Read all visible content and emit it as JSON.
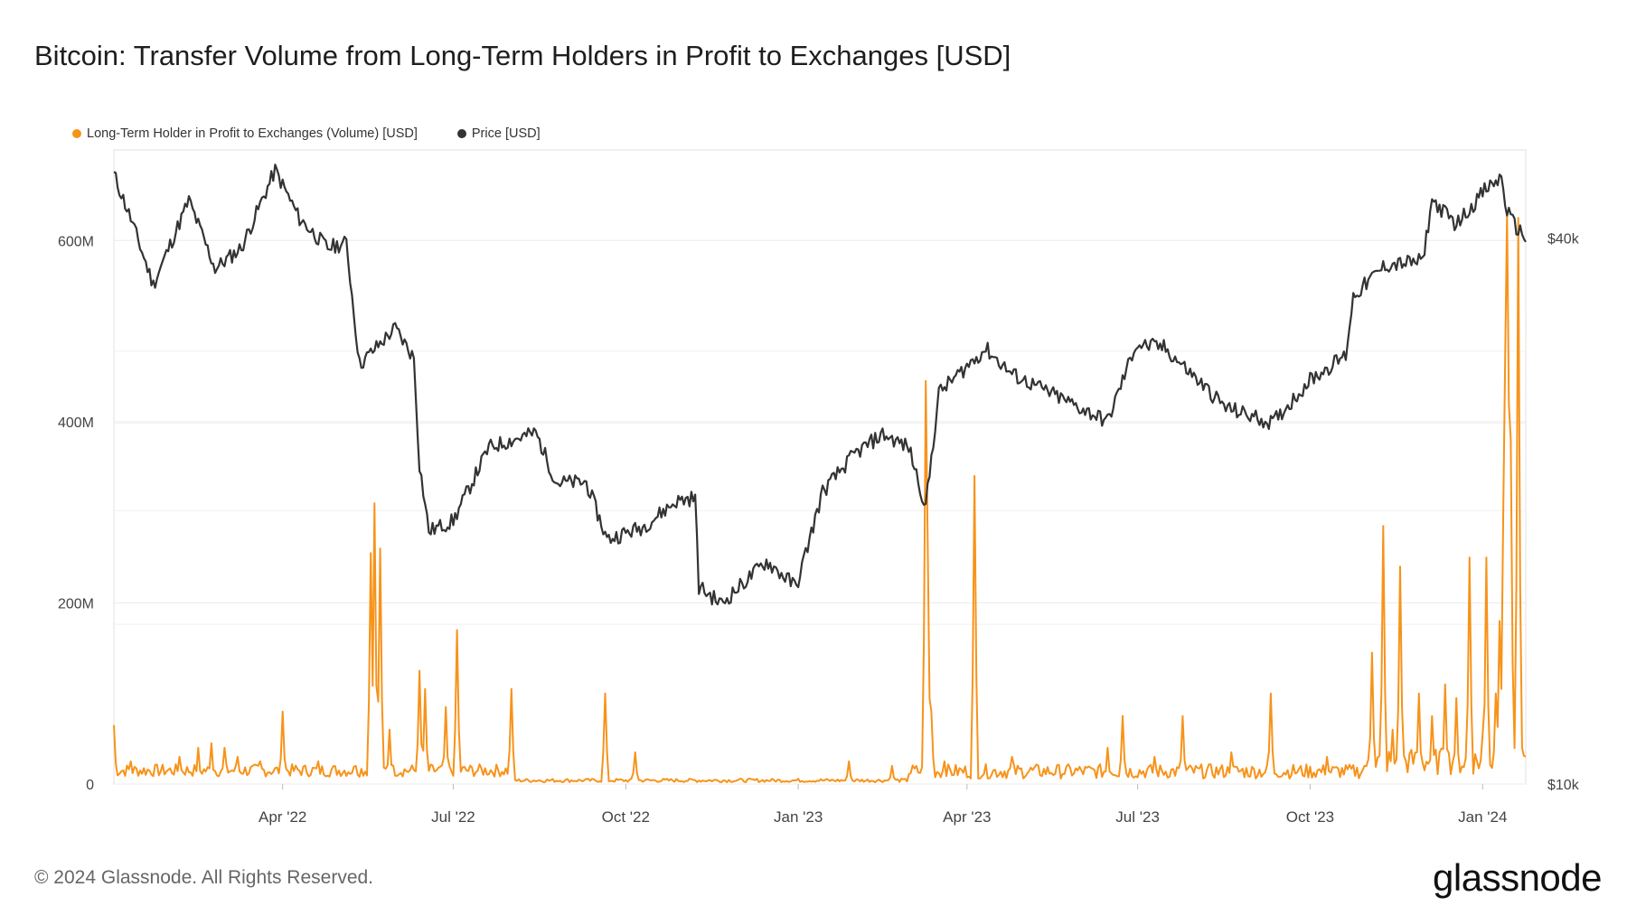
{
  "title": "Bitcoin: Transfer Volume from Long-Term Holders in Profit to Exchanges [USD]",
  "footer": "© 2024 Glassnode. All Rights Reserved.",
  "brand": "glassnode",
  "colors": {
    "volume": "#f7931a",
    "price": "#333333",
    "grid": "#ececec",
    "axis_text": "#444444"
  },
  "chart_data": {
    "type": "line",
    "legend_position": "top-left",
    "grid": true,
    "x_ticks": [
      "Apr '22",
      "Jul '22",
      "Oct '22",
      "Jan '23",
      "Apr '23",
      "Jul '23",
      "Oct '23",
      "Jan '24"
    ],
    "x_range": [
      "2022-01-01",
      "2024-01-24"
    ],
    "left_axis": {
      "ticks": [
        0,
        200,
        400,
        600
      ],
      "labels": [
        "0",
        "200M",
        "400M",
        "600M"
      ],
      "range": [
        0,
        700
      ]
    },
    "right_axis": {
      "ticks": [
        10000,
        40000
      ],
      "labels": [
        "$10k",
        "$40k"
      ],
      "scale": "log",
      "range": [
        10000,
        50000
      ]
    },
    "series": [
      {
        "name": "Long-Term Holder in Profit to Exchanges (Volume) [USD]",
        "axis": "left",
        "color": "#f7931a",
        "unit": "M USD",
        "baseline_spikes": [
          [
            "2022-01-01",
            65
          ],
          [
            "2022-01-10",
            25
          ],
          [
            "2022-02-05",
            30
          ],
          [
            "2022-02-15",
            40
          ],
          [
            "2022-02-22",
            45
          ],
          [
            "2022-03-01",
            40
          ],
          [
            "2022-03-08",
            30
          ],
          [
            "2022-03-20",
            25
          ],
          [
            "2022-04-01",
            80
          ],
          [
            "2022-04-20",
            25
          ],
          [
            "2022-05-10",
            20
          ],
          [
            "2022-05-18",
            255
          ],
          [
            "2022-05-20",
            310
          ],
          [
            "2022-05-23",
            260
          ],
          [
            "2022-05-28",
            60
          ],
          [
            "2022-06-13",
            125
          ],
          [
            "2022-06-16",
            105
          ],
          [
            "2022-06-27",
            85
          ],
          [
            "2022-07-03",
            170
          ],
          [
            "2022-08-01",
            105
          ],
          [
            "2022-09-20",
            100
          ],
          [
            "2022-10-06",
            35
          ],
          [
            "2023-01-28",
            25
          ],
          [
            "2023-02-20",
            20
          ],
          [
            "2023-03-05",
            20
          ],
          [
            "2023-03-10",
            445
          ],
          [
            "2023-03-11",
            270
          ],
          [
            "2023-03-13",
            80
          ],
          [
            "2023-03-20",
            25
          ],
          [
            "2023-04-05",
            340
          ],
          [
            "2023-04-25",
            30
          ],
          [
            "2023-06-15",
            40
          ],
          [
            "2023-06-23",
            75
          ],
          [
            "2023-07-10",
            30
          ],
          [
            "2023-07-25",
            75
          ],
          [
            "2023-08-20",
            35
          ],
          [
            "2023-09-10",
            100
          ],
          [
            "2023-10-10",
            30
          ],
          [
            "2023-10-30",
            20
          ],
          [
            "2023-11-03",
            145
          ],
          [
            "2023-11-09",
            285
          ],
          [
            "2023-11-14",
            60
          ],
          [
            "2023-11-18",
            240
          ],
          [
            "2023-11-28",
            100
          ],
          [
            "2023-12-05",
            75
          ],
          [
            "2023-12-12",
            110
          ],
          [
            "2023-12-18",
            95
          ],
          [
            "2023-12-25",
            250
          ],
          [
            "2024-01-01",
            55
          ],
          [
            "2024-01-03",
            250
          ],
          [
            "2024-01-08",
            100
          ],
          [
            "2024-01-10",
            180
          ],
          [
            "2024-01-12",
            300
          ],
          [
            "2024-01-13",
            470
          ],
          [
            "2024-01-14",
            630
          ],
          [
            "2024-01-15",
            420
          ],
          [
            "2024-01-16",
            380
          ],
          [
            "2024-01-18",
            10
          ],
          [
            "2024-01-20",
            625
          ],
          [
            "2024-01-22",
            40
          ]
        ]
      },
      {
        "name": "Price [USD]",
        "axis": "right",
        "color": "#333333",
        "unit": "USD",
        "points": [
          [
            "2022-01-01",
            47000
          ],
          [
            "2022-01-10",
            42000
          ],
          [
            "2022-01-22",
            35500
          ],
          [
            "2022-02-10",
            44000
          ],
          [
            "2022-02-24",
            37000
          ],
          [
            "2022-03-10",
            39000
          ],
          [
            "2022-03-28",
            47500
          ],
          [
            "2022-04-10",
            42000
          ],
          [
            "2022-04-25",
            39000
          ],
          [
            "2022-05-05",
            39500
          ],
          [
            "2022-05-12",
            29000
          ],
          [
            "2022-05-31",
            31800
          ],
          [
            "2022-06-10",
            29500
          ],
          [
            "2022-06-13",
            22500
          ],
          [
            "2022-06-18",
            19000
          ],
          [
            "2022-07-01",
            19500
          ],
          [
            "2022-07-20",
            23500
          ],
          [
            "2022-08-14",
            24400
          ],
          [
            "2022-08-25",
            21500
          ],
          [
            "2022-09-10",
            21500
          ],
          [
            "2022-09-21",
            18600
          ],
          [
            "2022-10-10",
            19200
          ],
          [
            "2022-10-28",
            20500
          ],
          [
            "2022-11-07",
            20700
          ],
          [
            "2022-11-09",
            16500
          ],
          [
            "2022-11-21",
            15800
          ],
          [
            "2022-12-15",
            17600
          ],
          [
            "2022-12-31",
            16500
          ],
          [
            "2023-01-14",
            21000
          ],
          [
            "2023-01-31",
            23100
          ],
          [
            "2023-02-15",
            24300
          ],
          [
            "2023-03-01",
            23500
          ],
          [
            "2023-03-10",
            20200
          ],
          [
            "2023-03-17",
            27000
          ],
          [
            "2023-04-11",
            30200
          ],
          [
            "2023-04-25",
            28300
          ],
          [
            "2023-05-15",
            27000
          ],
          [
            "2023-06-15",
            25100
          ],
          [
            "2023-06-30",
            30500
          ],
          [
            "2023-07-15",
            30300
          ],
          [
            "2023-08-17",
            26000
          ],
          [
            "2023-09-11",
            25000
          ],
          [
            "2023-10-01",
            27900
          ],
          [
            "2023-10-20",
            29700
          ],
          [
            "2023-10-24",
            34500
          ],
          [
            "2023-11-10",
            37300
          ],
          [
            "2023-11-30",
            37700
          ],
          [
            "2023-12-05",
            44000
          ],
          [
            "2023-12-18",
            41400
          ],
          [
            "2024-01-02",
            45100
          ],
          [
            "2024-01-11",
            46600
          ],
          [
            "2024-01-14",
            42800
          ],
          [
            "2024-01-18",
            41300
          ],
          [
            "2024-01-24",
            40000
          ]
        ]
      }
    ]
  }
}
